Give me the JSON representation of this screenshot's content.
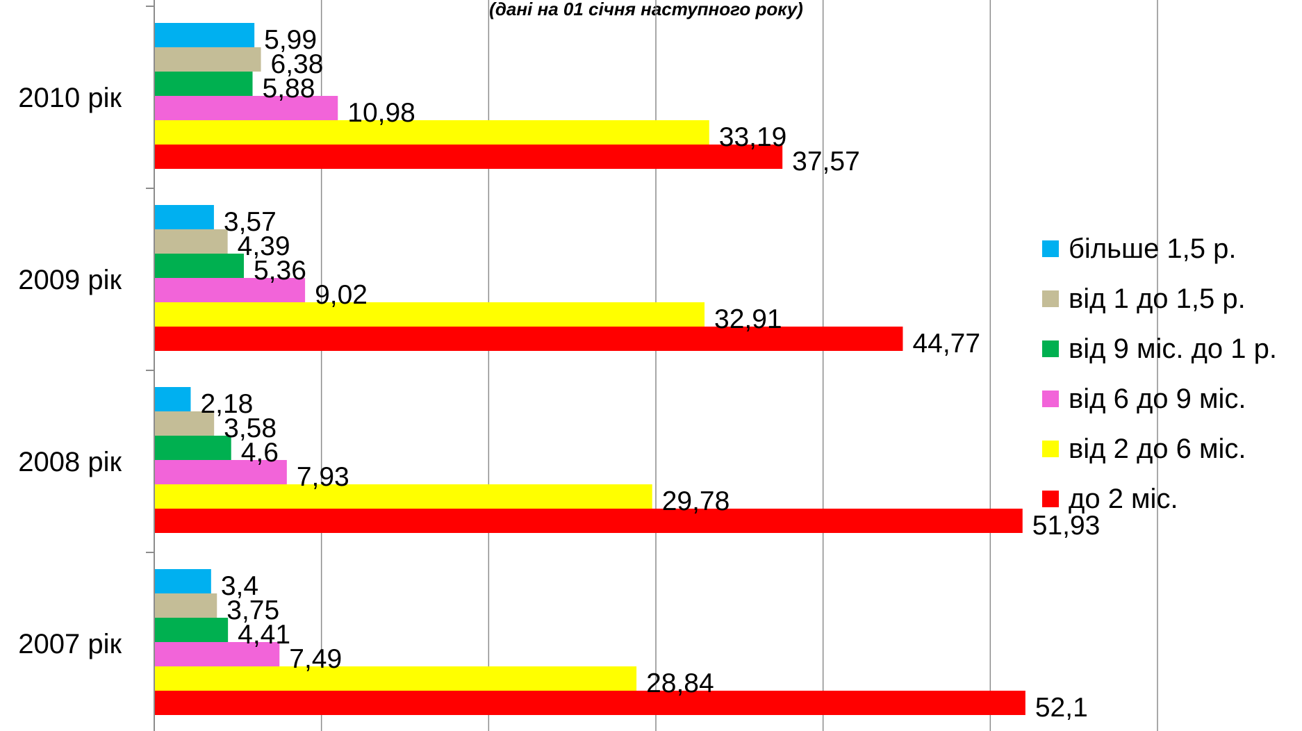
{
  "chart_data": {
    "type": "bar",
    "orientation": "horizontal",
    "subtitle": "(дані на 01 січня наступного року)",
    "categories": [
      "2007 рік",
      "2008 рік",
      "2009 рік",
      "2010 рік"
    ],
    "series": [
      {
        "name": "до 2 міс.",
        "color": "#ff0000",
        "values": [
          52.1,
          51.93,
          44.77,
          37.57
        ],
        "labels": [
          "52,1",
          "51,93",
          "44,77",
          "37,57"
        ]
      },
      {
        "name": "від 2 до 6 міс.",
        "color": "#ffff00",
        "values": [
          28.84,
          29.78,
          32.91,
          33.19
        ],
        "labels": [
          "28,84",
          "29,78",
          "32,91",
          "33,19"
        ]
      },
      {
        "name": "від 6 до 9 міс.",
        "color": "#f264d9",
        "values": [
          7.49,
          7.93,
          9.02,
          10.98
        ],
        "labels": [
          "7,49",
          "7,93",
          "9,02",
          "10,98"
        ]
      },
      {
        "name": "від 9 міс. до 1 р.",
        "color": "#00b050",
        "values": [
          4.41,
          4.6,
          5.36,
          5.88
        ],
        "labels": [
          "4,41",
          "4,6",
          "5,36",
          "5,88"
        ]
      },
      {
        "name": "від 1 до 1,5 р.",
        "color": "#c4bd97",
        "values": [
          3.75,
          3.58,
          4.39,
          6.38
        ],
        "labels": [
          "3,75",
          "3,58",
          "4,39",
          "6,38"
        ]
      },
      {
        "name": "більше 1,5 р.",
        "color": "#00b0f0",
        "values": [
          3.4,
          2.18,
          3.57,
          5.99
        ],
        "labels": [
          "3,4",
          "2,18",
          "3,57",
          "5,99"
        ]
      }
    ],
    "xlim": [
      0,
      60
    ],
    "x_gridline_step": 10,
    "grid": true,
    "legend_position": "right",
    "legend_order": [
      "більше 1,5 р.",
      "від 1 до 1,5 р.",
      "від 9 міс. до 1 р.",
      "від 6 до 9 міс.",
      "від 2 до 6 міс.",
      "до 2 міс."
    ]
  }
}
